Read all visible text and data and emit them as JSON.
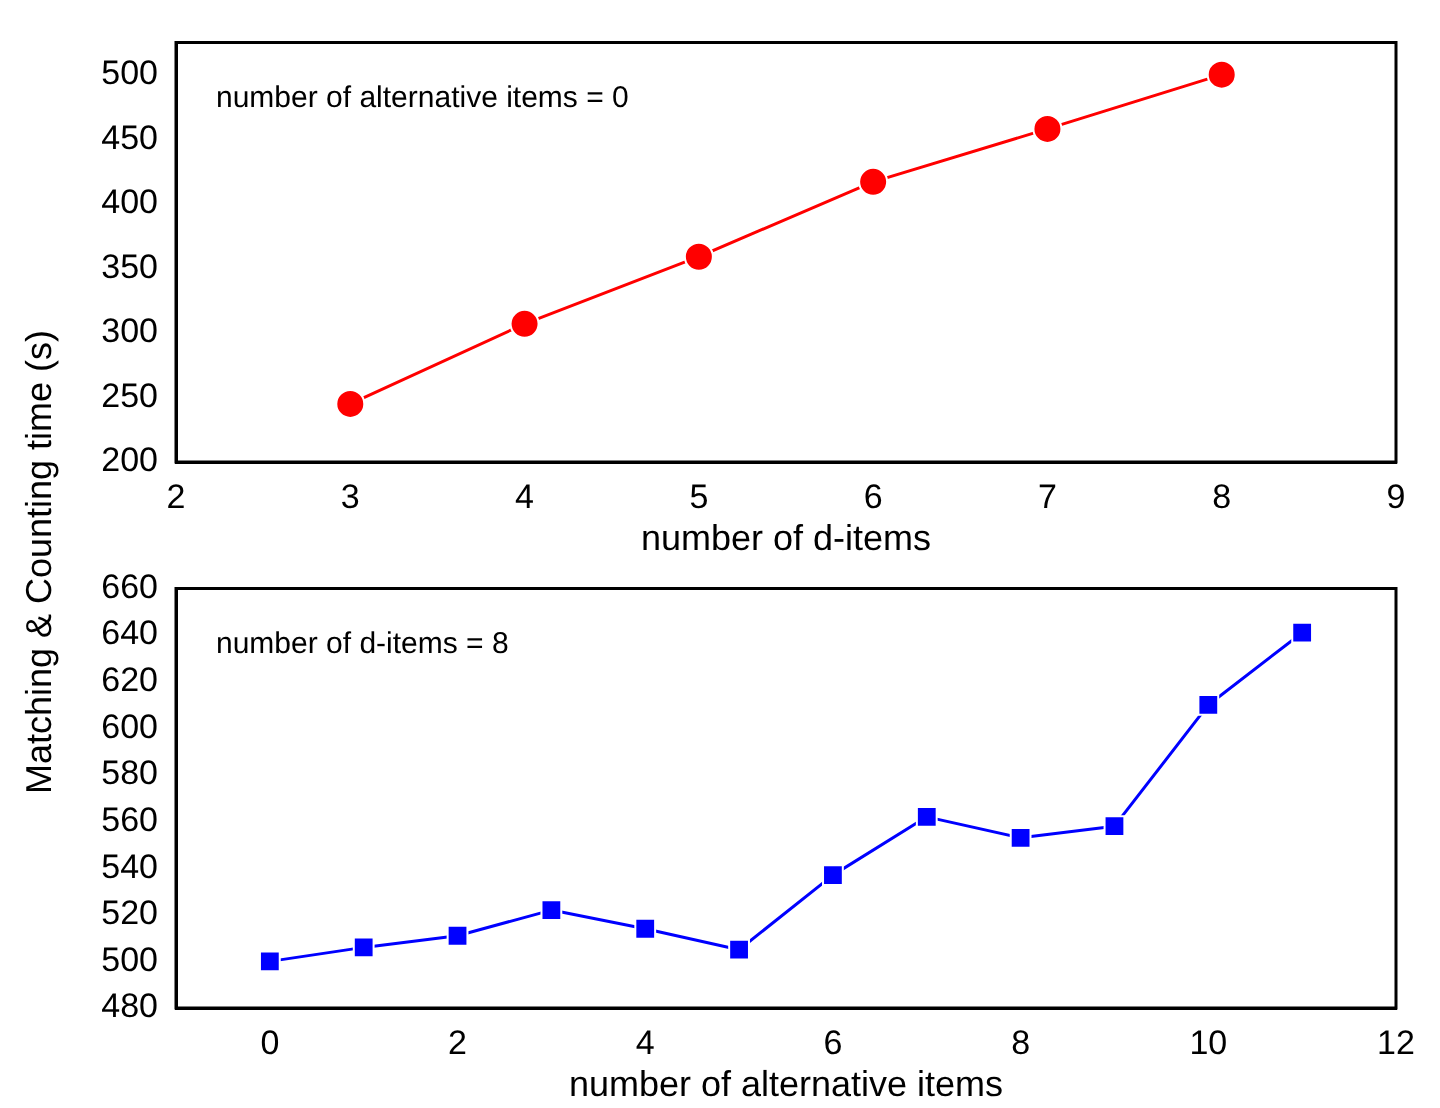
{
  "chart_data": [
    {
      "type": "line",
      "ylabel": "Matching & Counting time (s)",
      "xlabel": "number of d-items",
      "annotations": [
        "number of alternative items = 0"
      ],
      "x": [
        3,
        4,
        5,
        6,
        7,
        8
      ],
      "series": [
        {
          "color": "#ff0000",
          "values": [
            245,
            307,
            359,
            417,
            458,
            500
          ]
        }
      ],
      "xlim": [
        2,
        9
      ],
      "xticks": [
        2,
        3,
        4,
        5,
        6,
        7,
        8,
        9
      ],
      "ylim": [
        200,
        525
      ],
      "yticks": [
        200,
        250,
        300,
        350,
        400,
        450,
        500
      ],
      "grid": false,
      "legend": false,
      "marker": "circle",
      "line_style": "solid"
    },
    {
      "type": "line",
      "xlabel": "number of alternative items",
      "annotations": [
        "number of d-items = 8"
      ],
      "x": [
        0,
        1,
        2,
        3,
        4,
        5,
        6,
        7,
        8,
        9,
        10,
        11
      ],
      "series": [
        {
          "color": "#0000ff",
          "values": [
            500,
            506,
            511,
            522,
            514,
            505,
            537,
            562,
            553,
            558,
            610,
            641
          ]
        }
      ],
      "xlim": [
        -1,
        12
      ],
      "xticks": [
        0,
        2,
        4,
        6,
        8,
        10,
        12
      ],
      "ylim": [
        480,
        660
      ],
      "yticks": [
        480,
        500,
        520,
        540,
        560,
        580,
        600,
        620,
        640,
        660
      ],
      "grid": false,
      "legend": false,
      "marker": "square",
      "line_style": "solid"
    }
  ]
}
